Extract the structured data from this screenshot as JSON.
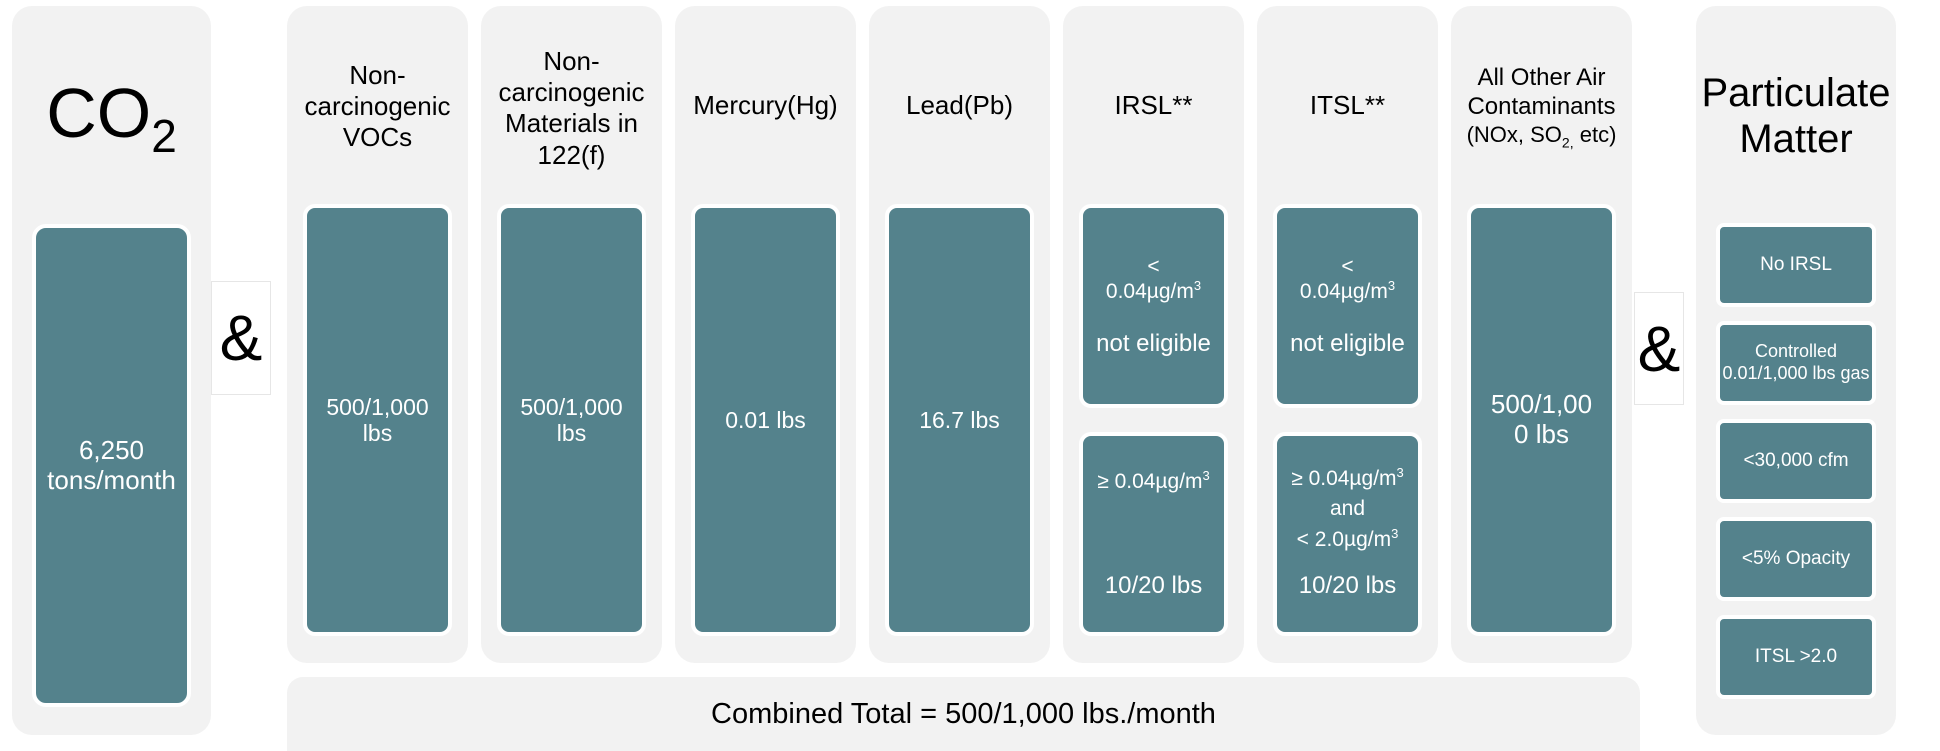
{
  "co2": {
    "title_main": "CO",
    "title_sub": "2",
    "value_line1": "6,250",
    "value_line2": "tons/month"
  },
  "amp_left": "&",
  "amp_right": "&",
  "columns": {
    "voc": {
      "title_l1": "Non-",
      "title_l2": "carcinogenic",
      "title_l3": "VOCs",
      "value_l1": "500/1,000",
      "value_l2": "lbs"
    },
    "f122": {
      "title_l1": "Non-",
      "title_l2": "carcinogenic",
      "title_l3": "Materials in",
      "title_l4": "122(f)",
      "value_l1": "500/1,000",
      "value_l2": "lbs"
    },
    "hg": {
      "title": "Mercury(Hg)",
      "value": "0.01 lbs"
    },
    "pb": {
      "title": "Lead(Pb)",
      "value": "16.7 lbs"
    },
    "irsl": {
      "title": "IRSL**",
      "upper_l1": "<",
      "upper_l2": "0.04µg/m",
      "upper_sup": "3",
      "upper_l3": "not eligible",
      "lower_l1": "≥ 0.04µg/m",
      "lower_sup": "3",
      "lower_l2": "10/20 lbs"
    },
    "itsl": {
      "title": "ITSL**",
      "upper_l1": "<",
      "upper_l2": "0.04µg/m",
      "upper_sup": "3",
      "upper_l3": "not eligible",
      "lower_l1": "≥ 0.04µg/m",
      "lower_sup1": "3",
      "lower_l2": "and",
      "lower_l3": "< 2.0µg/m",
      "lower_sup2": "3",
      "lower_l4": "10/20 lbs"
    },
    "other": {
      "title_l1": "All Other Air",
      "title_l2": "Contaminants",
      "title_l3a": "(NOx, SO",
      "title_l3sub": "2,",
      "title_l3b": " etc)",
      "value_l1": "500/1,00",
      "value_l2": "0 lbs"
    }
  },
  "combined_total": "Combined Total = 500/1,000 lbs./month",
  "pm": {
    "title_l1": "Particulate",
    "title_l2": "Matter",
    "items": [
      {
        "l1": "No IRSL",
        "l2": ""
      },
      {
        "l1": "Controlled",
        "l2": "0.01/1,000 lbs gas"
      },
      {
        "l1": "<30,000 cfm",
        "l2": ""
      },
      {
        "l1": "<5% Opacity",
        "l2": ""
      },
      {
        "l1": "ITSL >2.0",
        "l2": ""
      }
    ]
  },
  "colors": {
    "panel": "#f2f2f2",
    "box": "#54828c",
    "text_on_box": "#ffffff"
  }
}
